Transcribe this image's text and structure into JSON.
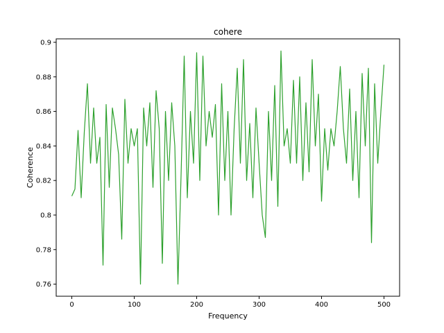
{
  "chart_data": {
    "type": "line",
    "title": "cohere",
    "x_label": "Frequency",
    "y_label": "Coherence",
    "x": [
      0,
      5,
      10,
      15,
      20,
      25,
      30,
      35,
      40,
      45,
      50,
      55,
      60,
      65,
      70,
      75,
      80,
      85,
      90,
      95,
      100,
      105,
      110,
      115,
      120,
      125,
      130,
      135,
      140,
      145,
      150,
      155,
      160,
      165,
      170,
      175,
      180,
      185,
      190,
      195,
      200,
      205,
      210,
      215,
      220,
      225,
      230,
      235,
      240,
      245,
      250,
      255,
      260,
      265,
      270,
      275,
      280,
      285,
      290,
      295,
      300,
      305,
      310,
      315,
      320,
      325,
      330,
      335,
      340,
      345,
      350,
      355,
      360,
      365,
      370,
      375,
      380,
      385,
      390,
      395,
      400,
      405,
      410,
      415,
      420,
      425,
      430,
      435,
      440,
      445,
      450,
      455,
      460,
      465,
      470,
      475,
      480,
      485,
      490,
      495,
      500
    ],
    "values": [
      0.811,
      0.815,
      0.849,
      0.81,
      0.848,
      0.876,
      0.83,
      0.862,
      0.83,
      0.845,
      0.771,
      0.864,
      0.816,
      0.862,
      0.85,
      0.835,
      0.786,
      0.867,
      0.83,
      0.85,
      0.84,
      0.85,
      0.76,
      0.862,
      0.84,
      0.865,
      0.816,
      0.872,
      0.85,
      0.772,
      0.86,
      0.82,
      0.865,
      0.84,
      0.76,
      0.823,
      0.892,
      0.81,
      0.86,
      0.83,
      0.894,
      0.82,
      0.892,
      0.84,
      0.86,
      0.845,
      0.864,
      0.8,
      0.876,
      0.82,
      0.86,
      0.8,
      0.85,
      0.885,
      0.83,
      0.89,
      0.82,
      0.853,
      0.81,
      0.862,
      0.83,
      0.8,
      0.787,
      0.86,
      0.82,
      0.875,
      0.805,
      0.895,
      0.84,
      0.85,
      0.83,
      0.878,
      0.83,
      0.88,
      0.82,
      0.865,
      0.825,
      0.89,
      0.84,
      0.87,
      0.808,
      0.85,
      0.826,
      0.85,
      0.84,
      0.86,
      0.886,
      0.85,
      0.83,
      0.873,
      0.82,
      0.86,
      0.81,
      0.882,
      0.84,
      0.885,
      0.784,
      0.876,
      0.83,
      0.86,
      0.887
    ],
    "color": "#2ca02c",
    "xlim": [
      -25,
      525
    ],
    "xticks": [
      0,
      100,
      200,
      300,
      400,
      500
    ],
    "ylim": [
      0.753,
      0.902
    ],
    "yticks": [
      0.76,
      0.78,
      0.8,
      0.82,
      0.84,
      0.86,
      0.88,
      0.9
    ],
    "grid": false
  }
}
